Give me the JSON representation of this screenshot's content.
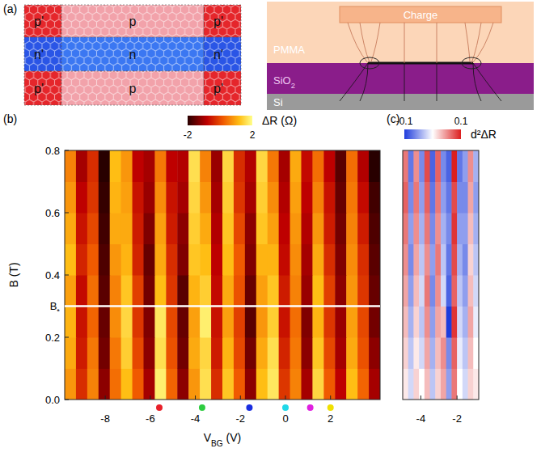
{
  "diagram": {
    "title": "(a)",
    "lattice": [
      [
        "p'",
        "p",
        "p'"
      ],
      [
        "n'",
        "n",
        "n'"
      ],
      [
        "p'",
        "p",
        "p'"
      ]
    ],
    "layers": [
      {
        "text": "Charge"
      },
      {
        "text": "PMMA"
      },
      {
        "text": "SiO",
        "sub": "2"
      },
      {
        "text": "Si"
      }
    ]
  },
  "chart_data": [
    {
      "type": "heatmap",
      "title": "(b)",
      "xlabel": {
        "text": "V",
        "sub": "BG",
        "after": " (V)"
      },
      "ylabel": "B (T)",
      "xlim": [
        -9.8,
        4.2
      ],
      "ylim": [
        0,
        0.8
      ],
      "xticks": [
        -8,
        -6,
        -4,
        -2,
        0,
        2
      ],
      "yticks": [
        {
          "value": 0,
          "label": "0.0"
        },
        0.2,
        0.4,
        0.6,
        0.8
      ],
      "colorbar": {
        "label": "ΔR (Ω)",
        "range": [
          -2,
          2
        ],
        "ticks": [
          -2,
          2
        ]
      },
      "annotations": [
        {
          "text": "B",
          "sub": "*",
          "y": 0.3
        }
      ],
      "markers": {
        "x": [
          -5.6,
          -3.7,
          -1.6,
          0,
          1.1,
          2.0
        ],
        "colors": [
          "#e8202a",
          "#2ecc40",
          "#1a2ee0",
          "#20d8e8",
          "#e020e0",
          "#f0e000"
        ]
      },
      "cells": [
        [
          0.8,
          -0.3,
          0.6,
          -1.2,
          0.4,
          1.2,
          0.2,
          -1.0,
          1.8,
          0.3,
          -1.2,
          0.8,
          1.6,
          -0.3,
          1.3,
          0.2,
          -1.2,
          1.2,
          1.7,
          -0.2,
          0.6,
          -1.0,
          1.5,
          0.2,
          -0.8,
          1.2,
          0.3,
          -1.0
        ],
        [
          1.0,
          -0.5,
          0.5,
          -1.4,
          0.5,
          1.4,
          0.0,
          -1.2,
          1.6,
          0.1,
          -1.4,
          1.0,
          1.5,
          -0.5,
          1.1,
          0.0,
          -1.4,
          1.0,
          1.6,
          -0.4,
          0.5,
          -1.2,
          1.3,
          0.0,
          -1.0,
          1.0,
          0.1,
          -1.2
        ],
        [
          1.1,
          -0.6,
          0.3,
          -1.5,
          0.7,
          1.5,
          -0.2,
          -1.3,
          1.7,
          0.0,
          -1.5,
          0.9,
          1.8,
          -0.6,
          0.9,
          -0.1,
          -1.6,
          0.8,
          1.4,
          -0.6,
          0.4,
          -1.3,
          1.1,
          -0.2,
          -1.1,
          0.9,
          0.0,
          -1.4
        ],
        [
          0.9,
          -0.7,
          0.4,
          -1.6,
          0.6,
          1.3,
          -0.1,
          -1.4,
          1.2,
          -0.2,
          -1.6,
          1.1,
          1.4,
          -0.7,
          1.0,
          0.1,
          -1.5,
          0.9,
          1.3,
          -0.5,
          0.6,
          -1.1,
          1.2,
          -0.1,
          -1.2,
          0.8,
          -0.2,
          -1.5
        ],
        [
          1.2,
          -0.4,
          0.2,
          -1.7,
          0.8,
          1.1,
          -0.4,
          -1.5,
          1.0,
          -0.3,
          -1.3,
          1.3,
          1.2,
          -0.8,
          1.2,
          0.2,
          -1.3,
          1.1,
          1.1,
          -0.7,
          0.7,
          -1.0,
          1.0,
          -0.3,
          -1.3,
          0.7,
          -0.3,
          -1.6
        ],
        [
          1.0,
          -0.6,
          0.0,
          -1.8,
          1.0,
          1.0,
          -0.5,
          -1.3,
          0.9,
          -0.5,
          -1.2,
          1.4,
          1.0,
          -0.9,
          1.3,
          0.0,
          -1.2,
          1.3,
          0.9,
          -0.8,
          0.8,
          -0.9,
          0.8,
          -0.5,
          -1.4,
          0.6,
          -0.5,
          -1.7
        ],
        [
          0.8,
          -0.8,
          -0.2,
          -1.9,
          1.1,
          0.9,
          -0.6,
          -1.1,
          0.7,
          -0.6,
          -1.0,
          1.5,
          0.8,
          -1.0,
          1.4,
          -0.2,
          -1.0,
          1.4,
          0.7,
          -0.9,
          0.9,
          -0.8,
          0.6,
          -0.6,
          -1.5,
          0.5,
          -0.7,
          -1.8
        ],
        [
          0.6,
          -1.0,
          -0.3,
          -2.0,
          1.2,
          0.8,
          -0.8,
          -1.0,
          0.5,
          -0.8,
          -0.9,
          1.6,
          0.6,
          -1.1,
          1.5,
          -0.3,
          -0.9,
          1.5,
          0.5,
          -1.0,
          1.0,
          -0.7,
          0.4,
          -0.8,
          -1.6,
          0.4,
          -0.9,
          -2.0
        ]
      ]
    },
    {
      "type": "heatmap",
      "title": "(c)",
      "xlim": [
        -5.0,
        -0.8
      ],
      "ylim": [
        0,
        0.8
      ],
      "xticks": [
        -4,
        -2
      ],
      "tick_labels": "x",
      "colorbar": {
        "label": "d²ΔR",
        "range": [
          -0.1,
          0.1
        ],
        "ticks": [
          -0.1,
          0.1
        ]
      },
      "cells": [
        [
          0.01,
          -0.02,
          0.02,
          0.0,
          0.03,
          -0.03,
          0.02,
          0.04,
          -0.05,
          0.06,
          0.0,
          -0.02,
          0.02,
          0.01
        ],
        [
          0.02,
          -0.03,
          0.01,
          -0.02,
          0.04,
          -0.04,
          0.03,
          0.05,
          -0.06,
          0.07,
          -0.01,
          -0.03,
          0.03,
          0.0
        ],
        [
          0.03,
          -0.04,
          0.02,
          -0.03,
          0.05,
          -0.05,
          0.04,
          0.03,
          -0.1,
          0.09,
          -0.02,
          -0.04,
          0.04,
          -0.01
        ],
        [
          0.04,
          -0.05,
          0.03,
          -0.02,
          0.06,
          -0.06,
          0.05,
          -0.02,
          -0.08,
          0.07,
          -0.03,
          -0.05,
          0.03,
          -0.02
        ],
        [
          0.05,
          -0.06,
          0.04,
          -0.03,
          0.05,
          -0.05,
          0.06,
          -0.03,
          -0.07,
          0.08,
          -0.04,
          -0.06,
          0.02,
          -0.03
        ],
        [
          0.06,
          -0.05,
          0.05,
          -0.04,
          0.06,
          -0.06,
          0.05,
          -0.04,
          -0.06,
          0.09,
          -0.05,
          -0.05,
          0.03,
          -0.04
        ],
        [
          0.07,
          -0.06,
          0.06,
          -0.05,
          0.07,
          -0.07,
          0.06,
          -0.05,
          -0.07,
          0.08,
          -0.06,
          -0.06,
          0.04,
          -0.05
        ],
        [
          0.06,
          -0.07,
          0.05,
          -0.06,
          0.08,
          -0.08,
          0.07,
          -0.06,
          -0.08,
          0.1,
          -0.07,
          -0.05,
          0.05,
          -0.04
        ]
      ]
    }
  ]
}
